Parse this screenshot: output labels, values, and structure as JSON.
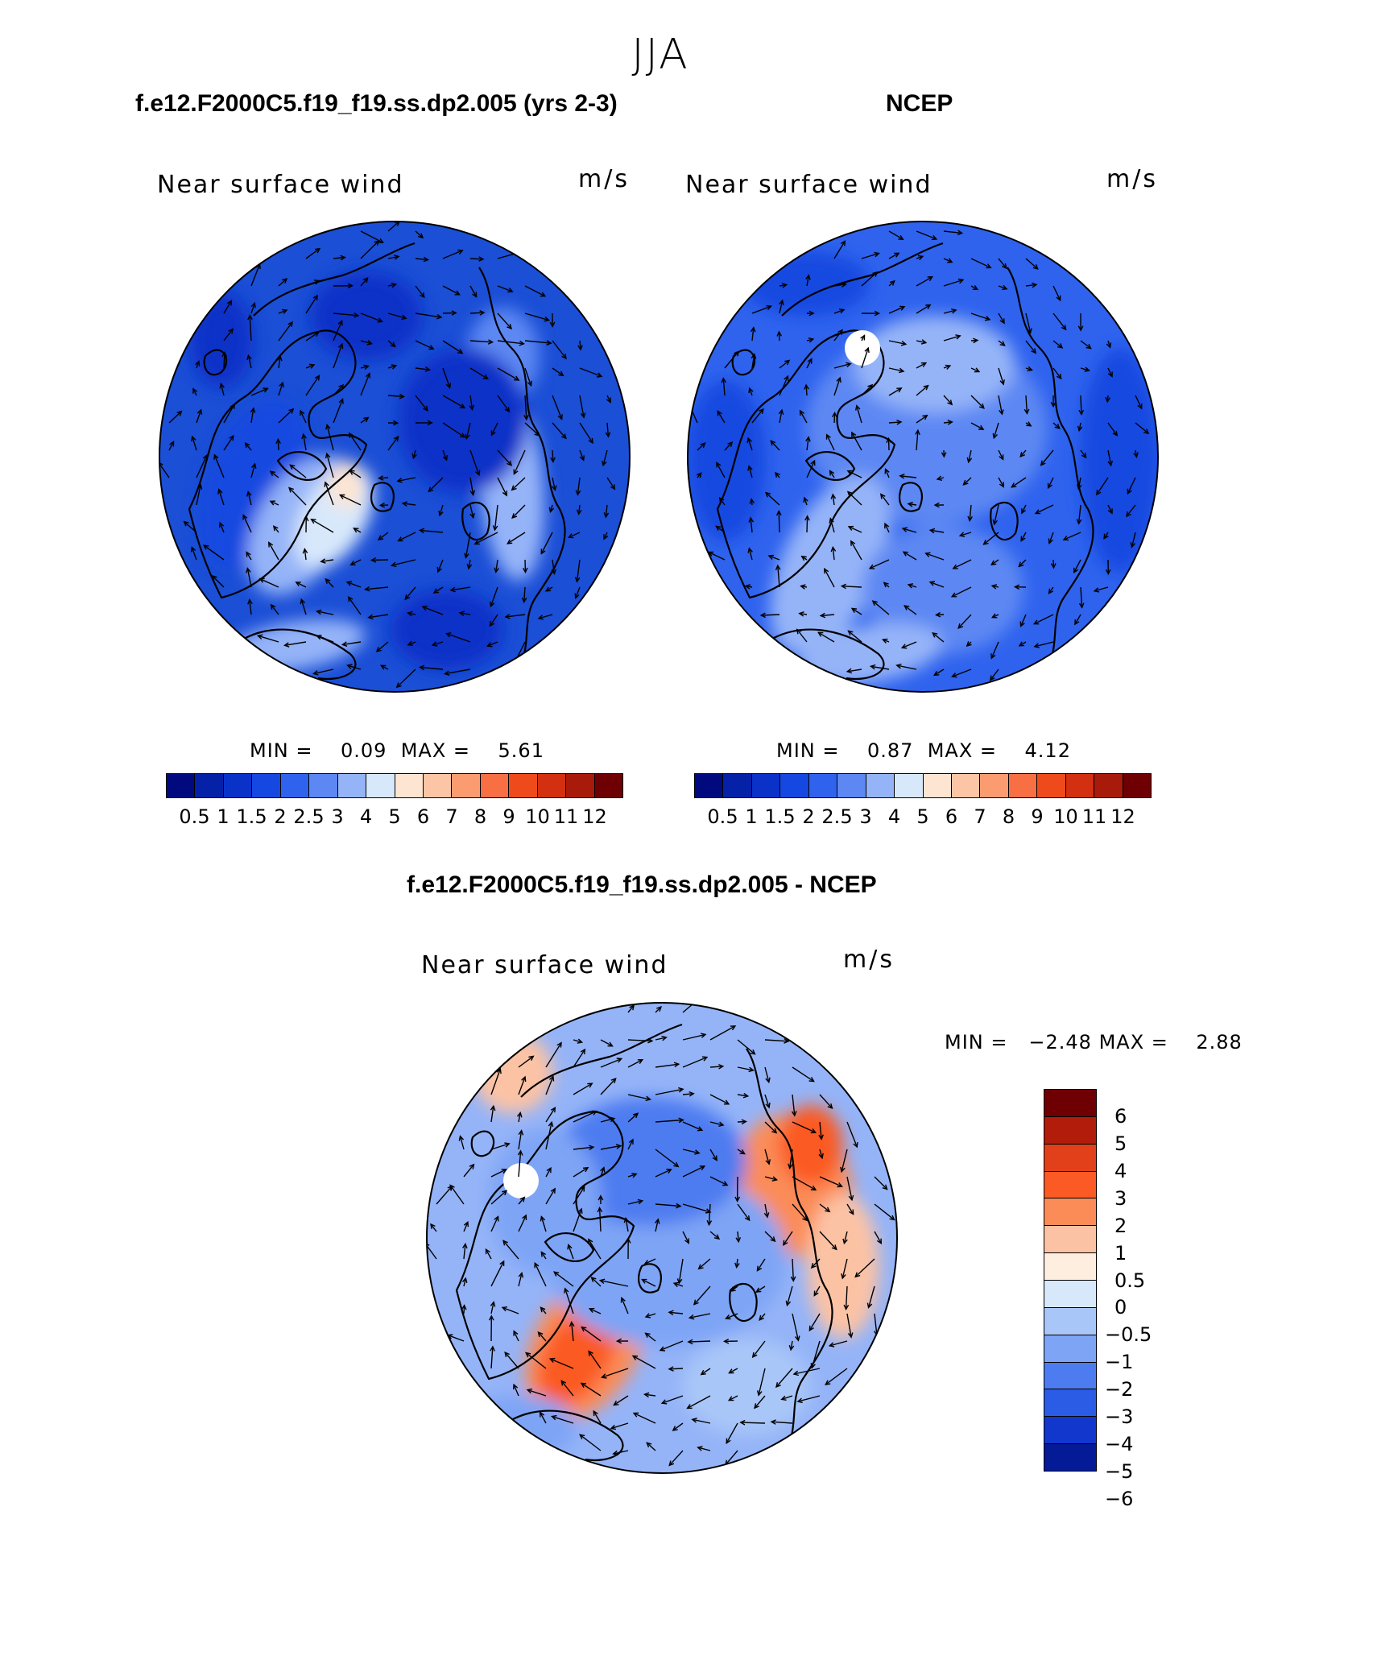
{
  "figure_title": "JJA",
  "panels": [
    {
      "title": "f.e12.F2000C5.f19_f19.ss.dp2.005 (yrs 2-3)",
      "variable": "Near surface wind",
      "units": "m/s",
      "min_label": "MIN =",
      "min_value": "0.09",
      "max_label": "MAX =",
      "max_value": "5.61",
      "base_color": "#1b4fd6",
      "colorbar": {
        "colors": [
          "#000a7e",
          "#0421a8",
          "#0a32c8",
          "#1448e0",
          "#2f63ee",
          "#5d88f3",
          "#95b4f8",
          "#d8e8fb",
          "#fde5d2",
          "#fcc5a6",
          "#fa9c70",
          "#f76f43",
          "#ee4a1c",
          "#d23010",
          "#a81a0a",
          "#6e0004"
        ],
        "labels": [
          "0.5",
          "1",
          "1.5",
          "2",
          "2.5",
          "3",
          "4",
          "5",
          "6",
          "7",
          "8",
          "9",
          "10",
          "11",
          "12"
        ]
      }
    },
    {
      "title": "NCEP",
      "variable": "Near surface wind",
      "units": "m/s",
      "min_label": "MIN =",
      "min_value": "0.87",
      "max_label": "MAX =",
      "max_value": "4.12",
      "base_color": "#2f63ee",
      "colorbar": {
        "colors": [
          "#000a7e",
          "#0421a8",
          "#0a32c8",
          "#1448e0",
          "#2f63ee",
          "#5d88f3",
          "#95b4f8",
          "#d8e8fb",
          "#fde5d2",
          "#fcc5a6",
          "#fa9c70",
          "#f76f43",
          "#ee4a1c",
          "#d23010",
          "#a81a0a",
          "#6e0004"
        ],
        "labels": [
          "0.5",
          "1",
          "1.5",
          "2",
          "2.5",
          "3",
          "4",
          "5",
          "6",
          "7",
          "8",
          "9",
          "10",
          "11",
          "12"
        ]
      }
    },
    {
      "title": "f.e12.F2000C5.f19_f19.ss.dp2.005 - NCEP",
      "variable": "Near surface wind",
      "units": "m/s",
      "min_label": "MIN =",
      "min_value": "−2.48",
      "max_label": "MAX =",
      "max_value": "2.88",
      "base_color": "#95b4f8",
      "colorbar": {
        "colors": [
          "#6e0004",
          "#b21c0a",
          "#e2401a",
          "#fb5a24",
          "#fb8c58",
          "#fcc2a4",
          "#fdeee0",
          "#d8e8fb",
          "#a9c6f8",
          "#7ea4f5",
          "#4d7cf0",
          "#2a5ce6",
          "#1137cc",
          "#041a96"
        ],
        "labels": [
          "6",
          "5",
          "4",
          "3",
          "2",
          "1",
          "0.5",
          "0",
          "−0.5",
          "−1",
          "−2",
          "−3",
          "−4",
          "−5",
          "−6"
        ]
      }
    }
  ]
}
